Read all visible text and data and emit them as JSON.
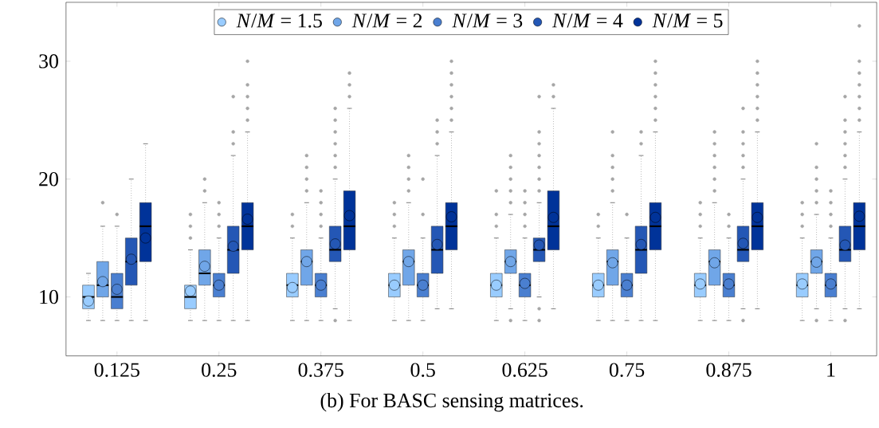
{
  "chart_data": {
    "type": "box",
    "categories": [
      "0.125",
      "0.25",
      "0.375",
      "0.5",
      "0.625",
      "0.75",
      "0.875",
      "1"
    ],
    "ylim": [
      5,
      35
    ],
    "yticks": [
      10,
      20,
      30
    ],
    "legend": "top",
    "annotations": [
      "(b) For BASC sensing matrices."
    ],
    "series": [
      {
        "name": "*N*/*M* = 1.5",
        "color": "#99ccff",
        "boxes": [
          {
            "low": 8,
            "q1": 9,
            "median": 10,
            "q3": 11,
            "high": 12,
            "mean": 9.65
          },
          {
            "low": 8,
            "q1": 9,
            "median": 10,
            "q3": 11,
            "high": 14,
            "mean": 10.5,
            "outliers": [
              15,
              16,
              17
            ]
          },
          {
            "low": 8,
            "q1": 10,
            "median": 11,
            "q3": 12,
            "high": 15,
            "mean": 10.8,
            "outliers": [
              16,
              17
            ]
          },
          {
            "low": 8,
            "q1": 10,
            "median": 11,
            "q3": 12,
            "high": 15,
            "mean": 11,
            "outliers": [
              16,
              17,
              18
            ]
          },
          {
            "low": 8,
            "q1": 10,
            "median": 11,
            "q3": 12,
            "high": 15,
            "mean": 11,
            "outliers": [
              16,
              17,
              19
            ]
          },
          {
            "low": 8,
            "q1": 10,
            "median": 11,
            "q3": 12,
            "high": 15,
            "mean": 11,
            "outliers": [
              16,
              17
            ]
          },
          {
            "low": 8,
            "q1": 10,
            "median": 11,
            "q3": 12,
            "high": 15,
            "mean": 11.1,
            "outliers": [
              16,
              17,
              18
            ]
          },
          {
            "low": 8,
            "q1": 10,
            "median": 11,
            "q3": 12,
            "high": 15,
            "mean": 11.1,
            "outliers": [
              16,
              17,
              18
            ]
          }
        ]
      },
      {
        "name": "*N*/*M* = 2",
        "color": "#70a6e8",
        "boxes": [
          {
            "low": 8,
            "q1": 10,
            "median": 11,
            "q3": 13,
            "high": 16,
            "mean": 11.3,
            "outliers": [
              18
            ]
          },
          {
            "low": 8,
            "q1": 11,
            "median": 12,
            "q3": 14,
            "high": 18,
            "mean": 12.6,
            "outliers": [
              19,
              20
            ]
          },
          {
            "low": 8,
            "q1": 11,
            "median": 13,
            "q3": 14,
            "high": 18,
            "mean": 13,
            "outliers": [
              19,
              20,
              21,
              22
            ]
          },
          {
            "low": 8,
            "q1": 11,
            "median": 13,
            "q3": 14,
            "high": 18,
            "mean": 13,
            "outliers": [
              19,
              20,
              21,
              22
            ]
          },
          {
            "low": 9,
            "q1": 12,
            "median": 13,
            "q3": 14,
            "high": 17,
            "mean": 13,
            "outliers": [
              8,
              18,
              19,
              20,
              21,
              22
            ]
          },
          {
            "low": 8,
            "q1": 11,
            "median": 13,
            "q3": 14,
            "high": 18,
            "mean": 12.9,
            "outliers": [
              19,
              20,
              21,
              22,
              24
            ]
          },
          {
            "low": 8,
            "q1": 11,
            "median": 13,
            "q3": 14,
            "high": 18,
            "mean": 12.9,
            "outliers": [
              19,
              20,
              21,
              22,
              23,
              24
            ]
          },
          {
            "low": 9,
            "q1": 12,
            "median": 13,
            "q3": 14,
            "high": 17,
            "mean": 12.95,
            "outliers": [
              8,
              18,
              19,
              20,
              21,
              23
            ]
          }
        ]
      },
      {
        "name": "*N*/*M* = 3",
        "color": "#4a7fd0",
        "boxes": [
          {
            "low": 8,
            "q1": 9,
            "median": 10,
            "q3": 12,
            "high": 16,
            "mean": 10.65,
            "outliers": [
              17
            ]
          },
          {
            "low": 8,
            "q1": 10,
            "median": 11,
            "q3": 12,
            "high": 15,
            "mean": 11,
            "outliers": [
              16,
              17,
              18
            ]
          },
          {
            "low": 8,
            "q1": 10,
            "median": 11,
            "q3": 12,
            "high": 15,
            "mean": 11,
            "outliers": [
              16,
              17,
              18,
              19
            ]
          },
          {
            "low": 8,
            "q1": 10,
            "median": 11,
            "q3": 12,
            "high": 15,
            "mean": 11,
            "outliers": [
              17,
              20
            ]
          },
          {
            "low": 8,
            "q1": 10,
            "median": 11,
            "q3": 12,
            "high": 15,
            "mean": 11.15,
            "outliers": [
              16,
              17,
              18,
              19
            ]
          },
          {
            "low": 8,
            "q1": 10,
            "median": 11,
            "q3": 12,
            "high": 15,
            "mean": 11,
            "outliers": [
              17
            ]
          },
          {
            "low": 8,
            "q1": 10,
            "median": 11,
            "q3": 12,
            "high": 15,
            "mean": 11.1,
            "outliers": [
              16,
              17
            ]
          },
          {
            "low": 8,
            "q1": 10,
            "median": 11,
            "q3": 12,
            "high": 15,
            "mean": 11.1,
            "outliers": [
              16,
              17,
              18,
              19
            ]
          }
        ]
      },
      {
        "name": "*N*/*M* = 4",
        "color": "#2457b5",
        "boxes": [
          {
            "low": 8,
            "q1": 11,
            "median": 13,
            "q3": 15,
            "high": 20,
            "mean": 13.2
          },
          {
            "low": 8,
            "q1": 12,
            "median": 14,
            "q3": 16,
            "high": 22,
            "mean": 14.3,
            "outliers": [
              23,
              24,
              27
            ]
          },
          {
            "low": 9,
            "q1": 13,
            "median": 14,
            "q3": 16,
            "high": 20,
            "mean": 14.5,
            "outliers": [
              8,
              21,
              22,
              23,
              24,
              25,
              26
            ]
          },
          {
            "low": 9,
            "q1": 12,
            "median": 14,
            "q3": 16,
            "high": 22,
            "mean": 14.45,
            "outliers": [
              23,
              24,
              25
            ]
          },
          {
            "low": 10,
            "q1": 13,
            "median": 14,
            "q3": 15,
            "high": 18,
            "mean": 14.4,
            "outliers": [
              8,
              9,
              19,
              20,
              21,
              22,
              23,
              24,
              27
            ]
          },
          {
            "low": 8,
            "q1": 12,
            "median": 14,
            "q3": 16,
            "high": 22,
            "mean": 14.45,
            "outliers": [
              23,
              24
            ]
          },
          {
            "low": 9,
            "q1": 13,
            "median": 14,
            "q3": 16,
            "high": 20,
            "mean": 14.55,
            "outliers": [
              8,
              21,
              22,
              23,
              24,
              26
            ]
          },
          {
            "low": 9,
            "q1": 13,
            "median": 14,
            "q3": 16,
            "high": 20,
            "mean": 14.4,
            "outliers": [
              8,
              21,
              22,
              23,
              24,
              25,
              27
            ]
          }
        ]
      },
      {
        "name": "*N*/*M* = 5",
        "color": "#003399",
        "boxes": [
          {
            "low": 8,
            "q1": 13,
            "median": 16,
            "q3": 18,
            "high": 23,
            "mean": 15
          },
          {
            "low": 8,
            "q1": 14,
            "median": 16,
            "q3": 18,
            "high": 24,
            "mean": 16.6,
            "outliers": [
              25,
              26,
              27,
              28,
              30
            ]
          },
          {
            "low": 8,
            "q1": 14,
            "median": 16,
            "q3": 19,
            "high": 26,
            "mean": 16.9,
            "outliers": [
              27,
              28,
              29
            ]
          },
          {
            "low": 9,
            "q1": 14,
            "median": 16,
            "q3": 18,
            "high": 24,
            "mean": 16.8,
            "outliers": [
              25,
              26,
              27,
              28,
              29,
              30
            ]
          },
          {
            "low": 9,
            "q1": 14,
            "median": 16,
            "q3": 19,
            "high": 26,
            "mean": 16.75,
            "outliers": [
              27,
              28
            ]
          },
          {
            "low": 8,
            "q1": 14,
            "median": 16,
            "q3": 18,
            "high": 24,
            "mean": 16.75,
            "outliers": [
              25,
              26,
              27,
              28,
              29,
              30
            ]
          },
          {
            "low": 9,
            "q1": 14,
            "median": 16,
            "q3": 18,
            "high": 24,
            "mean": 16.75,
            "outliers": [
              25,
              26,
              27,
              28,
              29,
              30
            ]
          },
          {
            "low": 9,
            "q1": 14,
            "median": 16,
            "q3": 18,
            "high": 24,
            "mean": 16.85,
            "outliers": [
              25,
              26,
              27,
              28,
              29,
              30,
              33
            ]
          }
        ]
      }
    ]
  }
}
